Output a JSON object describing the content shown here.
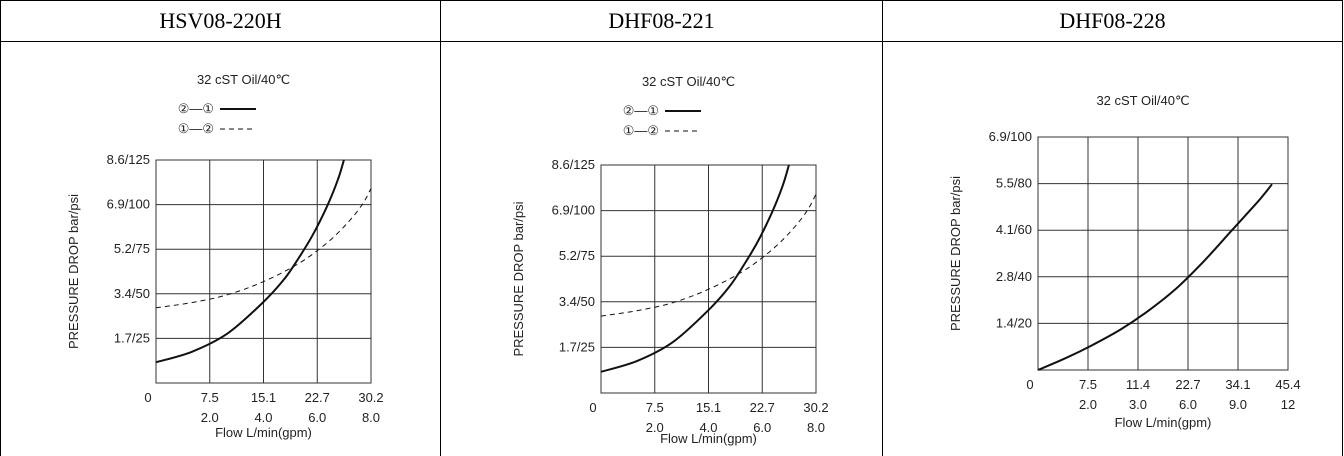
{
  "panels": [
    {
      "model": "HSV08-220H"
    },
    {
      "model": "DHF08-221"
    },
    {
      "model": "DHF08-228"
    }
  ],
  "chart_data": [
    {
      "type": "line",
      "title": "32 cST Oil/40℃",
      "ylabel": "PRESSURE DROP bar/psi",
      "xlabel": "Flow L/min(gpm)",
      "x_ticks": [
        "0",
        "7.5",
        "15.1",
        "22.7",
        "30.2"
      ],
      "x_ticks_gpm": [
        "2.0",
        "4.0",
        "6.0",
        "8.0"
      ],
      "y_ticks": [
        "1.7/25",
        "3.4/50",
        "5.2/75",
        "6.9/100",
        "8.6/125"
      ],
      "xlim": [
        0,
        30.2
      ],
      "ylim": [
        0,
        8.6
      ],
      "grid": true,
      "legend": [
        "②—①",
        "①—②"
      ],
      "series": [
        {
          "name": "②—①",
          "style": "solid",
          "x": [
            0,
            5,
            10,
            15,
            18,
            20,
            22,
            24,
            25.5,
            26.4
          ],
          "y": [
            0.8,
            1.2,
            1.9,
            3.1,
            4.0,
            4.8,
            5.7,
            6.8,
            7.8,
            8.6
          ]
        },
        {
          "name": "①—②",
          "style": "dashed",
          "x": [
            0,
            5,
            10,
            15,
            20,
            24,
            27,
            29,
            30.2
          ],
          "y": [
            2.9,
            3.1,
            3.4,
            3.9,
            4.6,
            5.4,
            6.2,
            6.9,
            7.5
          ]
        }
      ],
      "colors": {
        "line": "#111111",
        "grid": "#333333"
      }
    },
    {
      "type": "line",
      "title": "32 cST Oil/40℃",
      "ylabel": "PRESSURE DROP bar/psi",
      "xlabel": "Flow L/min(gpm)",
      "x_ticks": [
        "0",
        "7.5",
        "15.1",
        "22.7",
        "30.2"
      ],
      "x_ticks_gpm": [
        "2.0",
        "4.0",
        "6.0",
        "8.0"
      ],
      "y_ticks": [
        "1.7/25",
        "3.4/50",
        "5.2/75",
        "6.9/100",
        "8.6/125"
      ],
      "xlim": [
        0,
        30.2
      ],
      "ylim": [
        0,
        8.6
      ],
      "grid": true,
      "legend": [
        "②—①",
        "①—②"
      ],
      "series": [
        {
          "name": "②—①",
          "style": "solid",
          "x": [
            0,
            5,
            10,
            15,
            18,
            20,
            22,
            24,
            25.5,
            26.4
          ],
          "y": [
            0.8,
            1.2,
            1.9,
            3.1,
            4.0,
            4.8,
            5.7,
            6.8,
            7.8,
            8.6
          ]
        },
        {
          "name": "①—②",
          "style": "dashed",
          "x": [
            0,
            5,
            10,
            15,
            20,
            24,
            27,
            29,
            30.2
          ],
          "y": [
            2.9,
            3.1,
            3.4,
            3.9,
            4.6,
            5.4,
            6.2,
            6.9,
            7.5
          ]
        }
      ],
      "colors": {
        "line": "#111111",
        "grid": "#333333"
      }
    },
    {
      "type": "line",
      "title": "32 cST Oil/40℃",
      "ylabel": "PRESSURE DROP bar/psi",
      "xlabel": "Flow L/min(gpm)",
      "x_ticks": [
        "0",
        "7.5",
        "11.4",
        "22.7",
        "34.1",
        "45.4"
      ],
      "x_ticks_gpm": [
        "2.0",
        "3.0",
        "6.0",
        "9.0",
        "12"
      ],
      "y_ticks": [
        "1.4/20",
        "2.8/40",
        "4.1/60",
        "5.5/80",
        "6.9/100"
      ],
      "xlim": [
        0,
        45.4
      ],
      "ylim": [
        0,
        6.9
      ],
      "grid": true,
      "legend": [],
      "series": [
        {
          "name": "",
          "style": "solid",
          "x": [
            0,
            5,
            10,
            15,
            20,
            25,
            30,
            35,
            40,
            42.5
          ],
          "y": [
            0,
            0.35,
            0.75,
            1.2,
            1.75,
            2.4,
            3.2,
            4.1,
            5.0,
            5.5
          ]
        }
      ],
      "colors": {
        "line": "#111111",
        "grid": "#333333"
      }
    }
  ]
}
